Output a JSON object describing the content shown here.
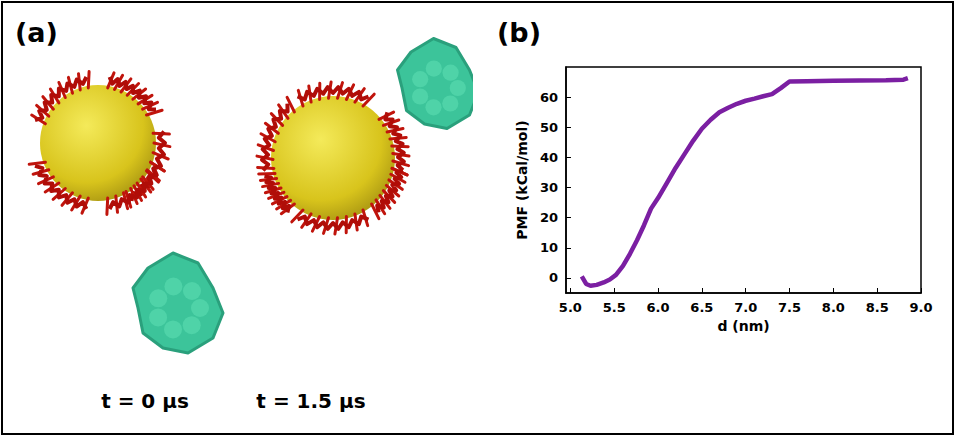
{
  "panels": {
    "a": {
      "label": "(a)",
      "times": [
        "t = 0 μs",
        "t = 1.5 μs"
      ]
    },
    "b": {
      "label": "(b)"
    }
  },
  "chart_data": {
    "type": "line",
    "xlabel": "d (nm)",
    "ylabel": "PMF (kCal/mol)",
    "x": [
      5.13,
      5.18,
      5.23,
      5.3,
      5.38,
      5.45,
      5.52,
      5.6,
      5.68,
      5.76,
      5.84,
      5.92,
      6.0,
      6.1,
      6.2,
      6.3,
      6.4,
      6.5,
      6.6,
      6.7,
      6.8,
      6.9,
      7.0,
      7.1,
      7.2,
      7.3,
      7.4,
      7.5,
      7.7,
      8.0,
      8.3,
      8.6,
      8.8,
      8.85
    ],
    "values": [
      0.5,
      -2.0,
      -2.6,
      -2.3,
      -1.5,
      -0.5,
      1.0,
      4.0,
      8.0,
      12.5,
      17.5,
      23.0,
      26.5,
      31.5,
      36.5,
      41.0,
      45.5,
      49.5,
      52.5,
      55.0,
      56.5,
      57.8,
      58.8,
      59.5,
      60.3,
      61.0,
      63.0,
      65.2,
      65.3,
      65.4,
      65.5,
      65.6,
      65.8,
      66.3
    ],
    "color": "#7b1fa2",
    "xlim": [
      4.95,
      9.0
    ],
    "xticks": [
      {
        "value": 5,
        "label": "5.0"
      },
      5.5,
      {
        "value": 6,
        "label": "6.0"
      },
      6.5,
      {
        "value": 7,
        "label": "7.0"
      },
      7.5,
      {
        "value": 8,
        "label": "8.0"
      },
      8.5,
      {
        "value": 9,
        "label": "9.0"
      }
    ],
    "ylim": [
      -5,
      70
    ],
    "yticks": [
      0,
      10,
      20,
      30,
      40,
      50,
      60
    ],
    "grid": false
  }
}
